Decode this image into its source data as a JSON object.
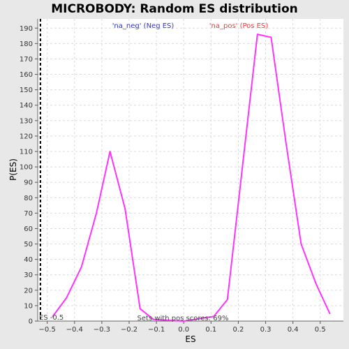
{
  "chart_data": {
    "type": "line",
    "title": "MICROBODY: Random ES distribution",
    "xlabel": "ES",
    "ylabel": "P(ES)",
    "xlim": [
      -0.535,
      0.585
    ],
    "ylim": [
      0,
      196
    ],
    "xticks": [
      -0.5,
      -0.4,
      -0.3,
      -0.2,
      -0.1,
      0.0,
      0.1,
      0.2,
      0.3,
      0.4,
      0.5
    ],
    "xtick_labels": [
      "−0.5",
      "−0.4",
      "−0.3",
      "−0.2",
      "−0.1",
      "0.0",
      "0.1",
      "0.2",
      "0.3",
      "0.4",
      "0.5"
    ],
    "yticks": [
      0,
      10,
      20,
      30,
      40,
      50,
      60,
      70,
      80,
      90,
      100,
      110,
      120,
      130,
      140,
      150,
      160,
      170,
      180,
      190
    ],
    "grid": true,
    "series": [
      {
        "color": "#ff33ff",
        "x": [
          -0.48,
          -0.43,
          -0.375,
          -0.32,
          -0.27,
          -0.215,
          -0.16,
          -0.11,
          0.0,
          0.11,
          0.16,
          0.215,
          0.27,
          0.32,
          0.375,
          0.43,
          0.485,
          0.535
        ],
        "y": [
          3,
          15,
          35,
          70,
          110,
          73,
          8,
          1,
          0,
          3,
          14,
          100,
          186,
          184,
          115,
          50,
          24,
          5
        ]
      }
    ],
    "legend": {
      "neg_label": "'na_neg' (Neg ES)",
      "neg_color": "#3333cc",
      "pos_label": "'na_pos' (Pos ES)",
      "pos_color": "#ff3333"
    },
    "es_marker": {
      "x": -0.525,
      "label": "ES -0.5",
      "color": "#000000"
    },
    "annotation": "Sets with pos scores: 69%"
  }
}
